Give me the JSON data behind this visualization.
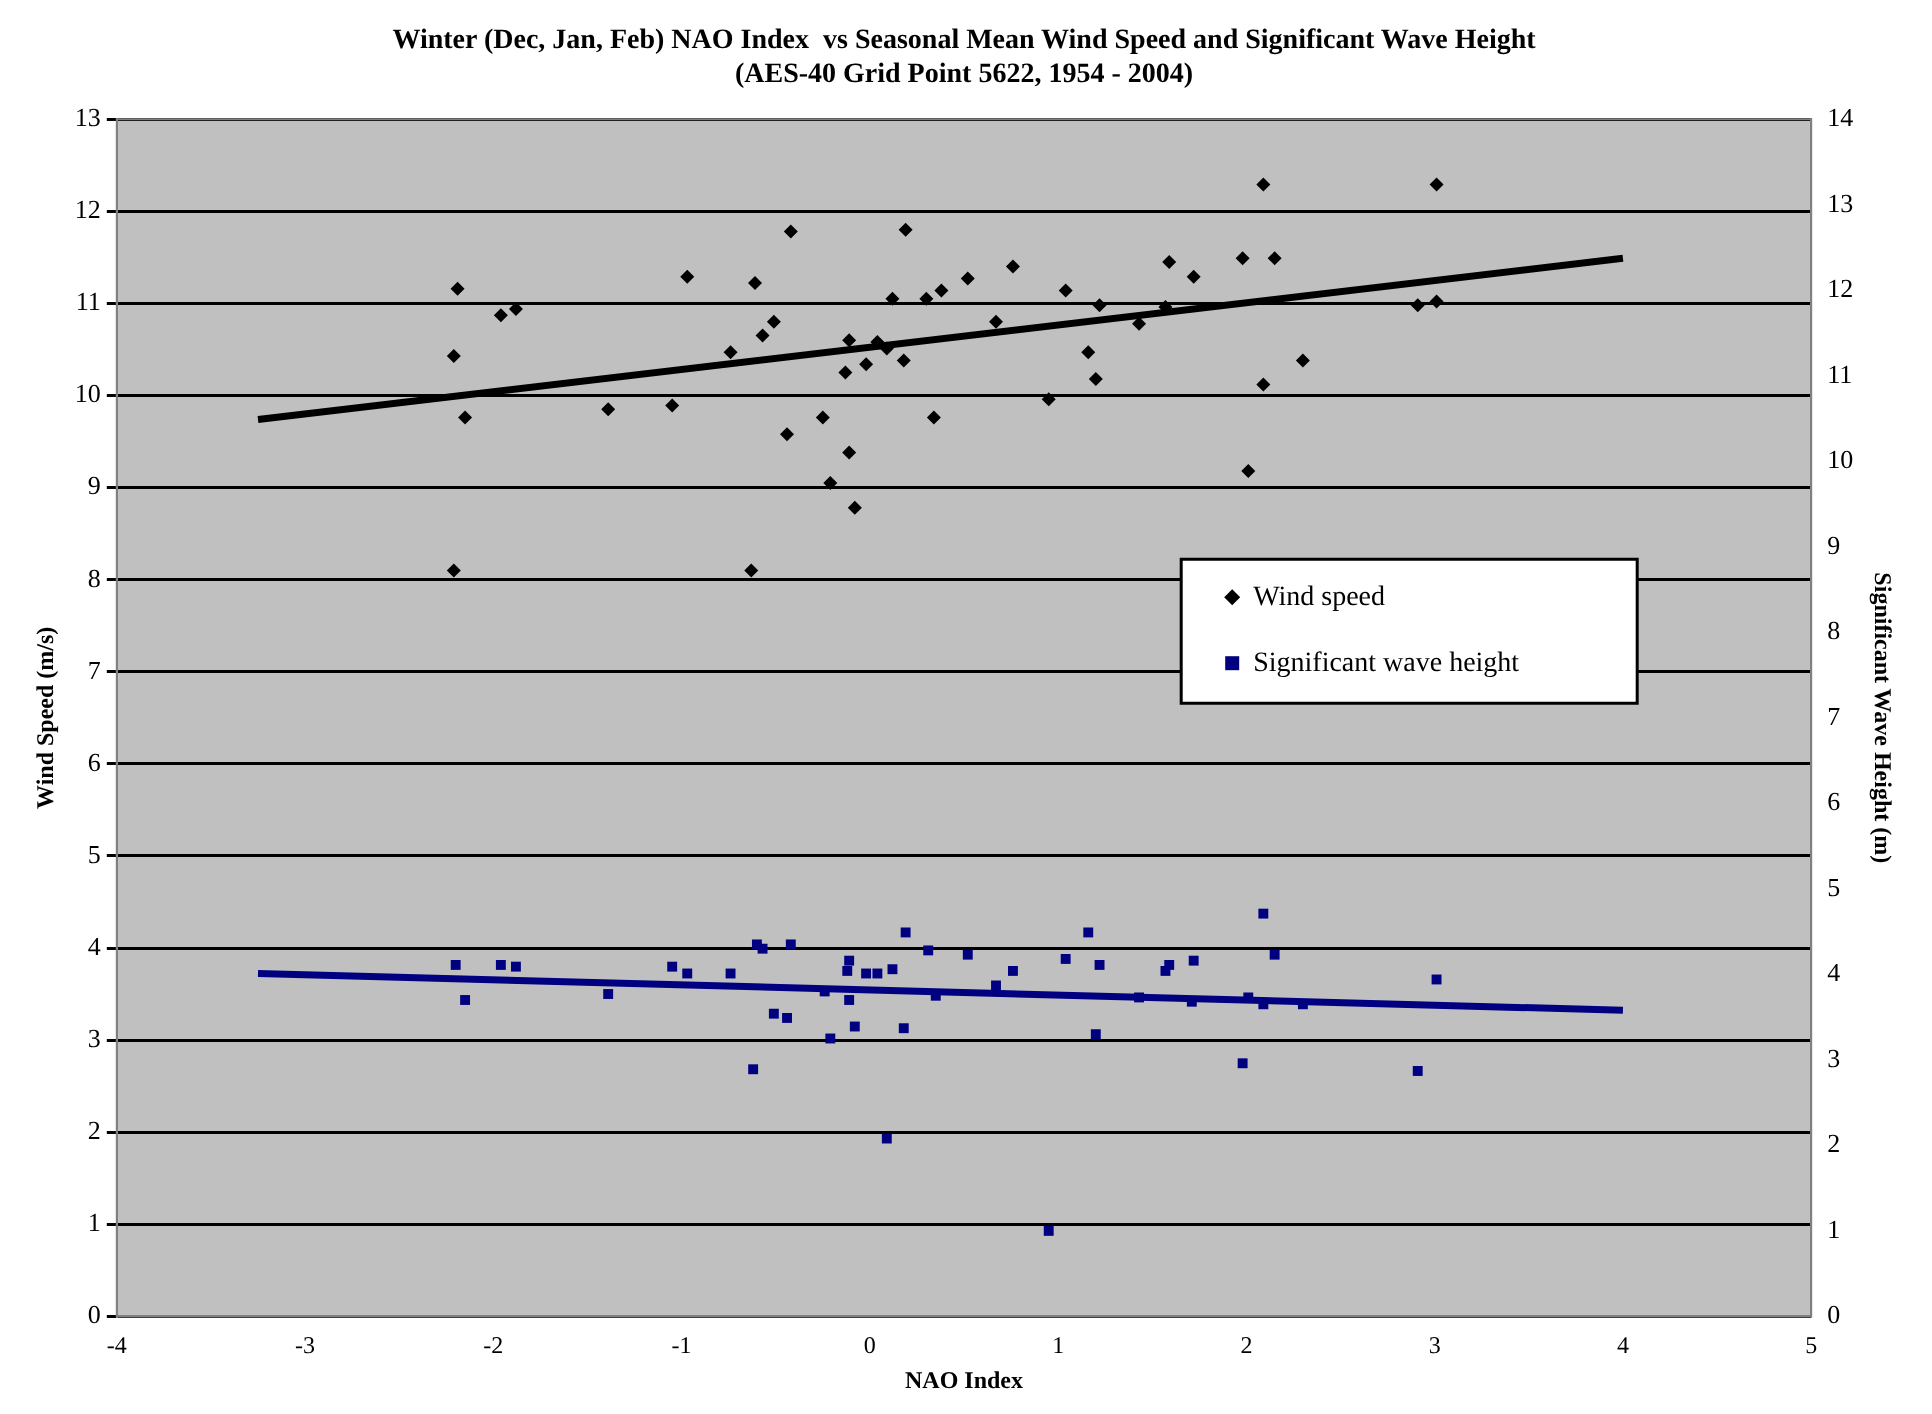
{
  "chart_data": {
    "type": "scatter",
    "title": "Winter (Dec, Jan, Feb) NAO Index  vs Seasonal Mean Wind Speed and Significant Wave Height",
    "subtitle": "(AES-40 Grid Point 5622, 1954 - 2004)",
    "xlabel": "NAO Index",
    "ylabel": "Wind Speed (m/s)",
    "y2label": "Significant Wave Height (m)",
    "xlim": [
      -4,
      5
    ],
    "xticks": [
      -4,
      -3,
      -2,
      -1,
      0,
      1,
      2,
      3,
      4,
      5
    ],
    "ylim": [
      0,
      13
    ],
    "yticks": [
      0,
      1,
      2,
      3,
      4,
      5,
      6,
      7,
      8,
      9,
      10,
      11,
      12,
      13
    ],
    "y2lim": [
      0,
      14
    ],
    "y2ticks": [
      0,
      1,
      2,
      3,
      4,
      5,
      6,
      7,
      8,
      9,
      10,
      11,
      12,
      13,
      14
    ],
    "grid": "y",
    "legend": "right",
    "series": [
      {
        "name": "Wind speed",
        "type": "scatter",
        "marker": "diamond",
        "color": "#000000",
        "x": [
          -2.19,
          -2.21,
          -2.15,
          -1.96,
          -1.88,
          -2.21,
          -1.39,
          -1.05,
          -0.97,
          -0.74,
          -0.61,
          -0.57,
          -0.51,
          -0.44,
          -0.42,
          -0.63,
          -0.25,
          -0.21,
          -0.11,
          -0.08,
          -0.11,
          -0.13,
          -0.02,
          0.04,
          0.09,
          0.12,
          0.18,
          0.19,
          0.3,
          0.38,
          0.52,
          0.34,
          0.67,
          0.76,
          0.95,
          1.04,
          1.16,
          1.2,
          1.22,
          1.43,
          1.57,
          1.59,
          1.72,
          1.98,
          2.01,
          2.09,
          2.09,
          2.15,
          2.3,
          2.91,
          3.01,
          3.01
        ],
        "values": [
          11.16,
          10.43,
          9.76,
          10.87,
          10.94,
          8.1,
          9.85,
          9.89,
          11.29,
          10.47,
          11.22,
          10.65,
          10.8,
          9.58,
          11.78,
          8.1,
          9.76,
          9.05,
          9.38,
          8.78,
          10.6,
          10.25,
          10.34,
          10.58,
          10.51,
          11.05,
          10.38,
          11.8,
          11.05,
          11.14,
          11.27,
          9.76,
          10.8,
          11.4,
          9.96,
          11.14,
          10.47,
          10.18,
          10.98,
          10.78,
          10.96,
          11.45,
          11.29,
          11.49,
          9.18,
          12.29,
          10.12,
          11.49,
          10.38,
          10.98,
          11.02,
          12.29
        ]
      },
      {
        "name": "Significant wave height",
        "type": "scatter",
        "marker": "square",
        "axis": "y2",
        "color": "#000080",
        "x": [
          -2.2,
          -2.15,
          -1.96,
          -1.88,
          -1.39,
          -1.05,
          -0.97,
          -0.74,
          -0.62,
          -0.6,
          -0.57,
          -0.42,
          -0.51,
          -0.44,
          -0.24,
          -0.21,
          -0.11,
          -0.12,
          -0.11,
          -0.08,
          -0.02,
          0.04,
          0.12,
          0.09,
          0.19,
          0.18,
          0.31,
          0.35,
          0.52,
          0.67,
          0.76,
          0.95,
          1.04,
          1.16,
          1.2,
          1.22,
          1.43,
          1.57,
          1.59,
          1.71,
          1.72,
          1.98,
          2.01,
          2.09,
          2.09,
          2.15,
          2.3,
          2.91,
          3.01
        ],
        "values": [
          4.11,
          3.7,
          4.11,
          4.09,
          3.77,
          4.09,
          4.01,
          4.01,
          2.89,
          4.35,
          4.3,
          4.35,
          3.54,
          3.49,
          3.8,
          3.25,
          4.16,
          4.04,
          3.7,
          3.39,
          4.01,
          4.01,
          4.06,
          2.08,
          4.49,
          3.37,
          4.28,
          3.75,
          4.23,
          3.87,
          4.04,
          1.0,
          4.18,
          4.49,
          3.3,
          4.11,
          3.73,
          4.04,
          4.11,
          3.68,
          4.16,
          2.96,
          3.73,
          4.71,
          3.65,
          4.23,
          3.65,
          2.87,
          3.94
        ]
      },
      {
        "type": "line",
        "marker": "none",
        "color": "#000000",
        "x": [
          -3.25,
          4
        ],
        "values": [
          9.74,
          11.49
        ]
      },
      {
        "type": "line",
        "marker": "none",
        "axis": "y2",
        "color": "#000080",
        "x": [
          -3.25,
          4
        ],
        "values": [
          4.01,
          3.58
        ]
      }
    ]
  }
}
